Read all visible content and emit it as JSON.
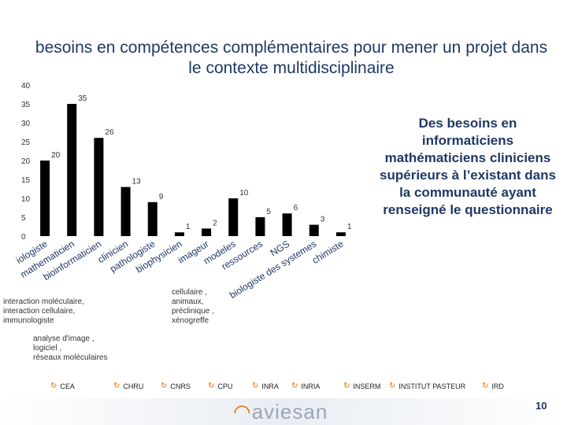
{
  "title": "besoins en compétences complémentaires  pour mener un projet dans le contexte  multidisciplinaire",
  "side_note": "Des besoins en informaticiens mathématiciens cliniciens supérieurs à l’existant dans la communauté ayant renseigné le questionnaire",
  "notes": {
    "interaction": "interaction moléculaire,\ninteraction cellulaire,\nimmunologiste",
    "cellular": "cellulaire ,\nanimaux,\npréclinique ,\nxénogreffe",
    "analysis": "analyse d'image ,\n logiciel ,\n réseaux moléculaires"
  },
  "partners": [
    "CEA",
    "CHRU",
    "CNRS",
    "CPU",
    "INRA",
    "INRIA",
    "INSERM",
    "INSTITUT PASTEUR",
    "IRD"
  ],
  "logo": "aviesan",
  "slide_number": "10",
  "colors": {
    "bar": "#000000",
    "title": "#1f3864",
    "accent": "#e36c0a"
  },
  "chart_data": {
    "type": "bar",
    "title": "besoins en compétences complémentaires  pour mener un projet dans le contexte  multidisciplinaire",
    "xlabel": "",
    "ylabel": "",
    "ylim": [
      0,
      40
    ],
    "yticks": [
      0,
      5,
      10,
      15,
      20,
      25,
      30,
      35,
      40
    ],
    "categories": [
      "biologiste",
      "mathématicien",
      "bioinformaticien",
      "clinicien",
      "pathologiste",
      "biophysicien",
      "imageur",
      "modeles",
      "ressources",
      "NGS",
      "biologiste des systemes",
      "chimiste"
    ],
    "tick_labels": [
      "iologiste",
      "mathematicien",
      "bioinformaticien",
      "clinicien",
      "pathologiste",
      "biophysicien",
      "imageur",
      "modeles",
      "ressources",
      "NGS",
      "biologiste des systemes",
      "chimiste"
    ],
    "values": [
      20,
      35,
      26,
      13,
      9,
      1,
      2,
      10,
      5,
      6,
      3,
      1
    ],
    "data_labels": [
      "20",
      "35",
      "26",
      "13",
      "9",
      "1",
      "2",
      "10",
      "5",
      "6",
      "3",
      "1"
    ]
  }
}
